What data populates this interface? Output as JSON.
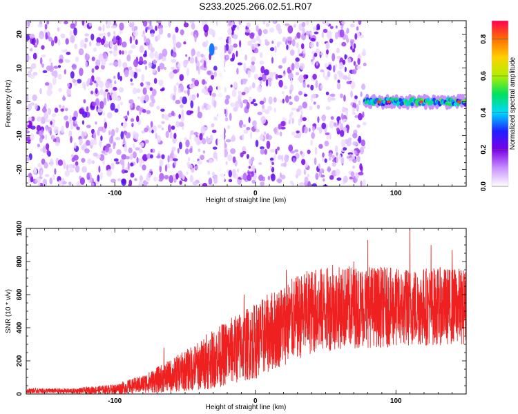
{
  "title": "S233.2025.266.02.51.R07",
  "chart_data": [
    {
      "type": "heatmap",
      "xlabel": "Height of straight line (km)",
      "ylabel": "Frequency (Hz)",
      "xlim": [
        -163,
        150
      ],
      "ylim": [
        -25,
        24
      ],
      "xticks": [
        -100,
        0,
        100
      ],
      "yticks": [
        -20,
        -10,
        0,
        10,
        20
      ],
      "colorbar": {
        "label": "Normalized spectral amplitude",
        "range": [
          0.0,
          0.9
        ],
        "ticks": [
          0.0,
          0.2,
          0.4,
          0.6,
          0.8
        ],
        "colors": [
          "#ffffff",
          "#c890ff",
          "#7a00e6",
          "#2020ff",
          "#00d8ff",
          "#00e060",
          "#b0f000",
          "#ffd000",
          "#ff7000",
          "#ff0050"
        ]
      },
      "regions": [
        {
          "x": [
            -163,
            78
          ],
          "description": "broadband scattered noise, amplitude mostly 0.05–0.25"
        },
        {
          "x": [
            -32,
            -30
          ],
          "y": [
            13,
            18
          ],
          "amplitude": 0.35
        },
        {
          "x": [
            78,
            150
          ],
          "y": [
            -3,
            2
          ],
          "amplitude": 0.5,
          "peak": 0.85,
          "center_freq": 0
        }
      ],
      "grid": false
    },
    {
      "type": "line",
      "xlabel": "Height of straight line (km)",
      "ylabel": "SNR (10 * v/v)",
      "xlim": [
        -163,
        150
      ],
      "ylim": [
        0,
        1000
      ],
      "xticks": [
        -100,
        0,
        100
      ],
      "yticks": [
        0,
        200,
        400,
        600,
        800,
        1000
      ],
      "color": "#ee2020",
      "envelope": [
        {
          "x": -163,
          "mean": 20,
          "amp": 15
        },
        {
          "x": -130,
          "mean": 18,
          "amp": 15
        },
        {
          "x": -100,
          "mean": 30,
          "amp": 30
        },
        {
          "x": -80,
          "mean": 60,
          "amp": 55
        },
        {
          "x": -60,
          "mean": 110,
          "amp": 100
        },
        {
          "x": -40,
          "mean": 170,
          "amp": 150
        },
        {
          "x": -20,
          "mean": 250,
          "amp": 200
        },
        {
          "x": 0,
          "mean": 320,
          "amp": 230
        },
        {
          "x": 20,
          "mean": 420,
          "amp": 250
        },
        {
          "x": 40,
          "mean": 500,
          "amp": 260
        },
        {
          "x": 60,
          "mean": 520,
          "amp": 250
        },
        {
          "x": 80,
          "mean": 530,
          "amp": 250
        },
        {
          "x": 100,
          "mean": 520,
          "amp": 240
        },
        {
          "x": 120,
          "mean": 530,
          "amp": 240
        },
        {
          "x": 150,
          "mean": 530,
          "amp": 230
        }
      ],
      "peaks": [
        {
          "x": -65,
          "y": 280
        },
        {
          "x": -35,
          "y": 360
        },
        {
          "x": -8,
          "y": 600
        },
        {
          "x": 22,
          "y": 750
        },
        {
          "x": 55,
          "y": 780
        },
        {
          "x": 70,
          "y": 800
        },
        {
          "x": 80,
          "y": 930
        },
        {
          "x": 110,
          "y": 1000
        },
        {
          "x": 125,
          "y": 900
        },
        {
          "x": 140,
          "y": 870
        }
      ]
    }
  ]
}
